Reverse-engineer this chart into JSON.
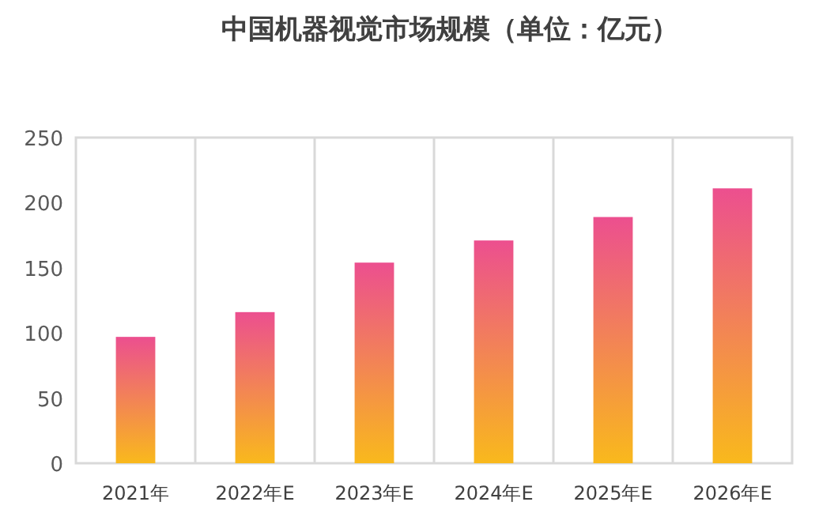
{
  "chart_data": {
    "type": "bar",
    "title": "中国机器视觉市场规模（单位：亿元）",
    "categories": [
      "2021年",
      "2022年E",
      "2023年E",
      "2024年E",
      "2025年E",
      "2026年E"
    ],
    "values": [
      97,
      116,
      154,
      171,
      189,
      211
    ],
    "color": "#ec4f8f",
    "ylim": [
      0,
      250
    ],
    "yticks": [
      0,
      50,
      100,
      150,
      200,
      250
    ],
    "grid": "x"
  }
}
